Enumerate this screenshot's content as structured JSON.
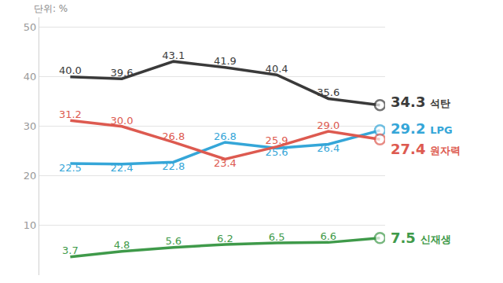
{
  "chart_data": {
    "type": "line",
    "ylabel": "단위: %",
    "categories": [
      null,
      null,
      null,
      null,
      null,
      null,
      null
    ],
    "series": [
      {
        "name": "석탄",
        "color": "#3a3a3a",
        "values": [
          40.0,
          39.6,
          43.1,
          41.9,
          40.4,
          35.6,
          34.3
        ],
        "value_labels": [
          "40.0",
          "39.6",
          "43.1",
          "41.9",
          "40.4",
          "35.6",
          "34.3"
        ]
      },
      {
        "name": "LPG",
        "color": "#35a6d8",
        "values": [
          22.5,
          22.4,
          22.8,
          26.8,
          25.6,
          26.4,
          29.2
        ],
        "value_labels": [
          "22.5",
          "22.4",
          "22.8",
          "26.8",
          "25.6",
          "26.4",
          "29.2"
        ]
      },
      {
        "name": "원자력",
        "color": "#dd5a50",
        "values": [
          31.2,
          30.0,
          26.8,
          23.4,
          25.9,
          29.0,
          27.4
        ],
        "value_labels": [
          "31.2",
          "30.0",
          "26.8",
          "23.4",
          "25.9",
          "29.0",
          "27.4"
        ]
      },
      {
        "name": "신재생",
        "color": "#3f9a4a",
        "values": [
          3.7,
          4.8,
          5.6,
          6.2,
          6.5,
          6.6,
          7.5
        ],
        "value_labels": [
          "3.7",
          "4.8",
          "5.6",
          "6.2",
          "6.5",
          "6.6",
          "7.5"
        ]
      }
    ],
    "ylim": [
      0,
      52
    ],
    "yticks": [
      10,
      20,
      30,
      40,
      50
    ],
    "grid": true,
    "data_labels": true
  }
}
